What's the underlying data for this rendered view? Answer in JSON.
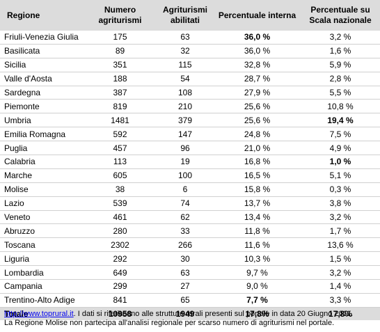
{
  "headers": {
    "regione": "Regione",
    "numero": [
      "Numero",
      "agriturismi"
    ],
    "abilitati": [
      "Agriturismi",
      "abilitati"
    ],
    "perc_interna": "Percentuale interna",
    "perc_naz": [
      "Percentuale su",
      "Scala nazionale"
    ]
  },
  "rows": [
    {
      "regione": "Friuli-Venezia Giulia",
      "numero": "175",
      "abilitati": "63",
      "perc_interna": "36,0 %",
      "perc_naz": "3,2 %",
      "bold_interna": true,
      "bold_naz": false
    },
    {
      "regione": "Basilicata",
      "numero": "89",
      "abilitati": "32",
      "perc_interna": "36,0 %",
      "perc_naz": "1,6 %",
      "bold_interna": false,
      "bold_naz": false
    },
    {
      "regione": "Sicilia",
      "numero": "351",
      "abilitati": "115",
      "perc_interna": "32,8 %",
      "perc_naz": "5,9 %",
      "bold_interna": false,
      "bold_naz": false
    },
    {
      "regione": "Valle d'Aosta",
      "numero": "188",
      "abilitati": "54",
      "perc_interna": "28,7 %",
      "perc_naz": "2,8 %",
      "bold_interna": false,
      "bold_naz": false
    },
    {
      "regione": "Sardegna",
      "numero": "387",
      "abilitati": "108",
      "perc_interna": "27,9 %",
      "perc_naz": "5,5 %",
      "bold_interna": false,
      "bold_naz": false
    },
    {
      "regione": "Piemonte",
      "numero": "819",
      "abilitati": "210",
      "perc_interna": "25,6 %",
      "perc_naz": "10,8 %",
      "bold_interna": false,
      "bold_naz": false
    },
    {
      "regione": "Umbria",
      "numero": "1481",
      "abilitati": "379",
      "perc_interna": "25,6 %",
      "perc_naz": "19,4 %",
      "bold_interna": false,
      "bold_naz": true
    },
    {
      "regione": "Emilia Romagna",
      "numero": "592",
      "abilitati": "147",
      "perc_interna": "24,8 %",
      "perc_naz": "7,5 %",
      "bold_interna": false,
      "bold_naz": false
    },
    {
      "regione": "Puglia",
      "numero": "457",
      "abilitati": "96",
      "perc_interna": "21,0 %",
      "perc_naz": "4,9 %",
      "bold_interna": false,
      "bold_naz": false
    },
    {
      "regione": "Calabria",
      "numero": "113",
      "abilitati": "19",
      "perc_interna": "16,8 %",
      "perc_naz": "1,0 %",
      "bold_interna": false,
      "bold_naz": true
    },
    {
      "regione": "Marche",
      "numero": "605",
      "abilitati": "100",
      "perc_interna": "16,5 %",
      "perc_naz": "5,1 %",
      "bold_interna": false,
      "bold_naz": false
    },
    {
      "regione": "Molise",
      "numero": "38",
      "abilitati": "6",
      "perc_interna": "15,8 %",
      "perc_naz": "0,3 %",
      "bold_interna": false,
      "bold_naz": false
    },
    {
      "regione": "Lazio",
      "numero": "539",
      "abilitati": "74",
      "perc_interna": "13,7 %",
      "perc_naz": "3,8 %",
      "bold_interna": false,
      "bold_naz": false
    },
    {
      "regione": "Veneto",
      "numero": "461",
      "abilitati": "62",
      "perc_interna": "13,4 %",
      "perc_naz": "3,2 %",
      "bold_interna": false,
      "bold_naz": false
    },
    {
      "regione": "Abruzzo",
      "numero": "280",
      "abilitati": "33",
      "perc_interna": "11,8 %",
      "perc_naz": "1,7 %",
      "bold_interna": false,
      "bold_naz": false
    },
    {
      "regione": "Toscana",
      "numero": "2302",
      "abilitati": "266",
      "perc_interna": "11,6 %",
      "perc_naz": "13,6 %",
      "bold_interna": false,
      "bold_naz": false
    },
    {
      "regione": "Liguria",
      "numero": "292",
      "abilitati": "30",
      "perc_interna": "10,3 %",
      "perc_naz": "1,5 %",
      "bold_interna": false,
      "bold_naz": false
    },
    {
      "regione": "Lombardia",
      "numero": "649",
      "abilitati": "63",
      "perc_interna": "9,7 %",
      "perc_naz": "3,2 %",
      "bold_interna": false,
      "bold_naz": false
    },
    {
      "regione": "Campania",
      "numero": "299",
      "abilitati": "27",
      "perc_interna": "9,0 %",
      "perc_naz": "1,4 %",
      "bold_interna": false,
      "bold_naz": false
    },
    {
      "regione": "Trentino-Alto Adige",
      "numero": "841",
      "abilitati": "65",
      "perc_interna": "7,7 %",
      "perc_naz": "3,3 %",
      "bold_interna": true,
      "bold_naz": false
    }
  ],
  "totals": {
    "regione": "Totale",
    "numero": "10958",
    "abilitati": "1949",
    "perc_interna": "17,8%",
    "perc_naz": "17,8%"
  },
  "notes": {
    "link": "http://www.toprural.it",
    "line1_rest": ". I dati si riferiscono alle strutture rurali presenti sul portale in data 20 Giugno 2011.",
    "line2": "La Regione Molise non partecipa all'analisi regionale per scarso numero di agriturismi nel portale."
  }
}
